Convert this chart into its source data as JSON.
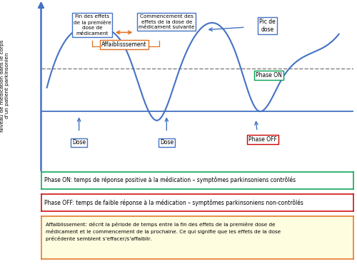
{
  "ylabel": "Niveau de médication dans le corps\nd'un patient parkinsonien",
  "curve_color": "#4472c4",
  "dashed_line_color": "#808080",
  "threshold_line_color": "#4472c4",
  "box_fin_effets": "Fin des effets\nde la première\ndose de\nmédicament",
  "box_commencement": "Commencement des\neffets de la dose de\nmédicament suivante",
  "box_affaiblissement": "Affaiblisssement",
  "box_pic_de_dose": "Pic de\ndose",
  "box_phase_on": "Phase ON",
  "box_phase_off": "Phase OFF",
  "box_dose1": "Dose",
  "box_dose2": "Dose",
  "legend_on": "Phase ON: temps de réponse positive à la médication – symptômes parkinsoniens contrôlés",
  "legend_off": "Phase OFF: temps de faible réponse à la médication – symptômes parkinsoniens non-contrôlés",
  "legend_affaiblissement": "Affaiblissement: décrit la période de temps entre la fin des effets de la première dose de\nmédicament et le commencement de la prochaine. Ce qui signifie que les effets de la dose\nprécédente semblent s'effacer/s'affaiblir.",
  "bg_color": "#ffffff",
  "box_fin_color": "#4472c4",
  "box_comm_color": "#4472c4",
  "box_affaibl_color": "#e07020",
  "box_pic_color": "#4472c4",
  "box_phase_on_color": "#00a050",
  "box_phase_off_color": "#cc0000",
  "box_dose_color": "#4472c4",
  "legend_on_box_color": "#00a050",
  "legend_off_box_color": "#cc0000",
  "legend_affaibl_box_color": "#e07020",
  "legend_affaibl_bg": "#fffde0"
}
